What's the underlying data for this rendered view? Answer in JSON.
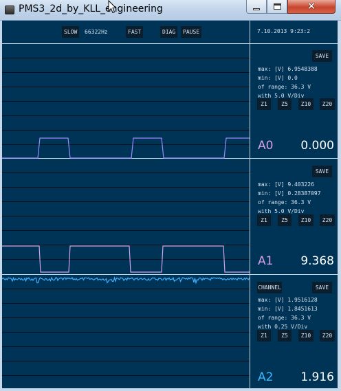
{
  "window": {
    "title": "PMS3_2d_by_KLL_engineering",
    "close_glyph": "✕"
  },
  "toolbar": {
    "slow_label": "SLOW",
    "frequency": "66322Hz",
    "fast_label": "FAST",
    "diag_label": "DIAG",
    "pause_label": "PAUSE",
    "datetime": "7.10.2013 9:23:2"
  },
  "channels": [
    {
      "name": "A0",
      "value": "0.000",
      "save_label": "SAVE",
      "max_line": "max: [V] 6.9548388",
      "min_line": "min: [V] 0.0",
      "range_line": "of range: 36.3 V",
      "div_line": "with 5.0 V/Div",
      "zoom": [
        "Z1",
        "Z5",
        "Z10",
        "Z20"
      ],
      "name_color": "#d6a0e6",
      "trace_color": "#9c8cff"
    },
    {
      "name": "A1",
      "value": "9.368",
      "save_label": "SAVE",
      "max_line": "max: [V] 9.403226",
      "min_line": "min: [V] 0.28387097",
      "range_line": "of range: 36.3 V",
      "div_line": "with 5.0 V/Div",
      "zoom": [
        "Z1",
        "Z5",
        "Z10",
        "Z20"
      ],
      "name_color": "#d6a0e6",
      "trace_color": "#d8a0f0"
    },
    {
      "name": "A2",
      "value": "1.916",
      "channel_label": "CHANNEL",
      "save_label": "SAVE",
      "max_line": "max: [V] 1.9516128",
      "min_line": "min: [V] 1.8451613",
      "range_line": "of range: 36.3 V",
      "div_line": "with 0.25 V/Div",
      "zoom": [
        "Z1",
        "Z5",
        "Z10",
        "Z20"
      ],
      "name_color": "#38b8ff",
      "trace_color": "#40b0ff"
    }
  ],
  "colors": {
    "background": "#003457",
    "grid_line": "#0b0f15",
    "separator": "#c9d9e6",
    "button_bg": "#0b1e2e",
    "text": "#d6e3ef"
  },
  "icons": [
    "app-icon",
    "minimize-icon",
    "maximize-icon",
    "close-icon",
    "mouse-cursor-icon"
  ]
}
